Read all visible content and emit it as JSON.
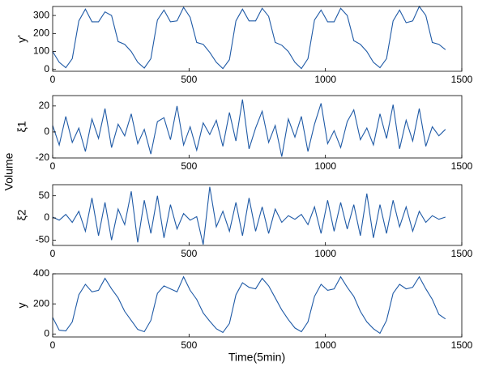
{
  "ylabel": "Volume",
  "xlabel": "Time(5min)",
  "chart_data": [
    {
      "type": "line",
      "ylabel": "y'",
      "xlim": [
        0,
        1500
      ],
      "xticks": [
        0,
        500,
        1000,
        1500
      ],
      "ylim": [
        -10,
        350
      ],
      "yticks": [
        0,
        100,
        200,
        300
      ],
      "x": [
        0,
        24,
        48,
        72,
        96,
        120,
        144,
        168,
        192,
        216,
        240,
        264,
        288,
        312,
        336,
        360,
        384,
        408,
        432,
        456,
        480,
        504,
        528,
        552,
        576,
        600,
        624,
        648,
        672,
        696,
        720,
        744,
        768,
        792,
        816,
        840,
        864,
        888,
        912,
        936,
        960,
        984,
        1008,
        1032,
        1056,
        1080,
        1104,
        1128,
        1152,
        1176,
        1200,
        1224,
        1248,
        1272,
        1296,
        1320,
        1344,
        1368,
        1392,
        1416,
        1440
      ],
      "series": [
        {
          "color": "#1f5aa6",
          "values": [
            100,
            40,
            10,
            60,
            270,
            335,
            265,
            265,
            320,
            300,
            155,
            140,
            100,
            40,
            8,
            60,
            275,
            330,
            265,
            270,
            345,
            290,
            150,
            140,
            95,
            40,
            5,
            55,
            270,
            335,
            270,
            270,
            340,
            295,
            150,
            135,
            100,
            40,
            5,
            60,
            275,
            330,
            265,
            265,
            340,
            300,
            160,
            140,
            100,
            40,
            10,
            60,
            270,
            330,
            260,
            270,
            350,
            300,
            150,
            140,
            110
          ]
        }
      ]
    },
    {
      "type": "line",
      "ylabel": "ξ1",
      "xlim": [
        0,
        1500
      ],
      "xticks": [
        0,
        500,
        1000,
        1500
      ],
      "ylim": [
        -20,
        28
      ],
      "yticks": [
        -20,
        0,
        20
      ],
      "x": [
        0,
        24,
        48,
        72,
        96,
        120,
        144,
        168,
        192,
        216,
        240,
        264,
        288,
        312,
        336,
        360,
        384,
        408,
        432,
        456,
        480,
        504,
        528,
        552,
        576,
        600,
        624,
        648,
        672,
        696,
        720,
        744,
        768,
        792,
        816,
        840,
        864,
        888,
        912,
        936,
        960,
        984,
        1008,
        1032,
        1056,
        1080,
        1104,
        1128,
        1152,
        1176,
        1200,
        1224,
        1248,
        1272,
        1296,
        1320,
        1344,
        1368,
        1392,
        1416,
        1440
      ],
      "series": [
        {
          "color": "#1f5aa6",
          "values": [
            5,
            -10,
            12,
            -8,
            3,
            -15,
            10,
            -5,
            18,
            -12,
            6,
            -3,
            14,
            -9,
            2,
            -17,
            8,
            11,
            -6,
            20,
            -10,
            4,
            -14,
            7,
            -2,
            9,
            -11,
            15,
            -7,
            25,
            -13,
            3,
            16,
            -8,
            5,
            -19,
            10,
            -4,
            12,
            -15,
            6,
            22,
            -9,
            1,
            -12,
            8,
            17,
            -6,
            3,
            -10,
            14,
            -5,
            21,
            -13,
            9,
            -7,
            18,
            -11,
            4,
            -3,
            2
          ]
        }
      ]
    },
    {
      "type": "line",
      "ylabel": "ξ2",
      "xlim": [
        0,
        1500
      ],
      "xticks": [
        0,
        500,
        1000,
        1500
      ],
      "ylim": [
        -62,
        75
      ],
      "yticks": [
        -50,
        0,
        50
      ],
      "x": [
        0,
        24,
        48,
        72,
        96,
        120,
        144,
        168,
        192,
        216,
        240,
        264,
        288,
        312,
        336,
        360,
        384,
        408,
        432,
        456,
        480,
        504,
        528,
        552,
        576,
        600,
        624,
        648,
        672,
        696,
        720,
        744,
        768,
        792,
        816,
        840,
        864,
        888,
        912,
        936,
        960,
        984,
        1008,
        1032,
        1056,
        1080,
        1104,
        1128,
        1152,
        1176,
        1200,
        1224,
        1248,
        1272,
        1296,
        1320,
        1344,
        1368,
        1392,
        1416,
        1440
      ],
      "series": [
        {
          "color": "#1f5aa6",
          "values": [
            2,
            -5,
            8,
            -10,
            15,
            -30,
            45,
            -40,
            35,
            -50,
            20,
            -15,
            60,
            -55,
            40,
            -35,
            50,
            -45,
            30,
            -25,
            10,
            -5,
            3,
            -60,
            70,
            -20,
            15,
            -30,
            35,
            -40,
            45,
            -30,
            25,
            -35,
            20,
            -10,
            5,
            -3,
            8,
            -15,
            25,
            -35,
            40,
            -30,
            35,
            -25,
            30,
            -40,
            55,
            -45,
            30,
            -35,
            40,
            -20,
            25,
            -30,
            15,
            -10,
            5,
            -3,
            2
          ]
        }
      ]
    },
    {
      "type": "line",
      "ylabel": "y",
      "xlim": [
        0,
        1500
      ],
      "xticks": [
        0,
        500,
        1000,
        1500
      ],
      "ylim": [
        -20,
        400
      ],
      "yticks": [
        0,
        200,
        400
      ],
      "x": [
        0,
        24,
        48,
        72,
        96,
        120,
        144,
        168,
        192,
        216,
        240,
        264,
        288,
        312,
        336,
        360,
        384,
        408,
        432,
        456,
        480,
        504,
        528,
        552,
        576,
        600,
        624,
        648,
        672,
        696,
        720,
        744,
        768,
        792,
        816,
        840,
        864,
        888,
        912,
        936,
        960,
        984,
        1008,
        1032,
        1056,
        1080,
        1104,
        1128,
        1152,
        1176,
        1200,
        1224,
        1248,
        1272,
        1296,
        1320,
        1344,
        1368,
        1392,
        1416,
        1440
      ],
      "series": [
        {
          "color": "#1f5aa6",
          "values": [
            110,
            25,
            20,
            80,
            260,
            330,
            280,
            290,
            370,
            300,
            240,
            150,
            90,
            30,
            15,
            90,
            270,
            320,
            300,
            280,
            380,
            290,
            230,
            140,
            85,
            35,
            10,
            70,
            260,
            340,
            310,
            300,
            370,
            320,
            240,
            160,
            95,
            40,
            15,
            80,
            250,
            330,
            290,
            300,
            380,
            310,
            250,
            150,
            80,
            35,
            5,
            90,
            270,
            330,
            300,
            310,
            380,
            300,
            230,
            130,
            100
          ]
        }
      ]
    }
  ]
}
